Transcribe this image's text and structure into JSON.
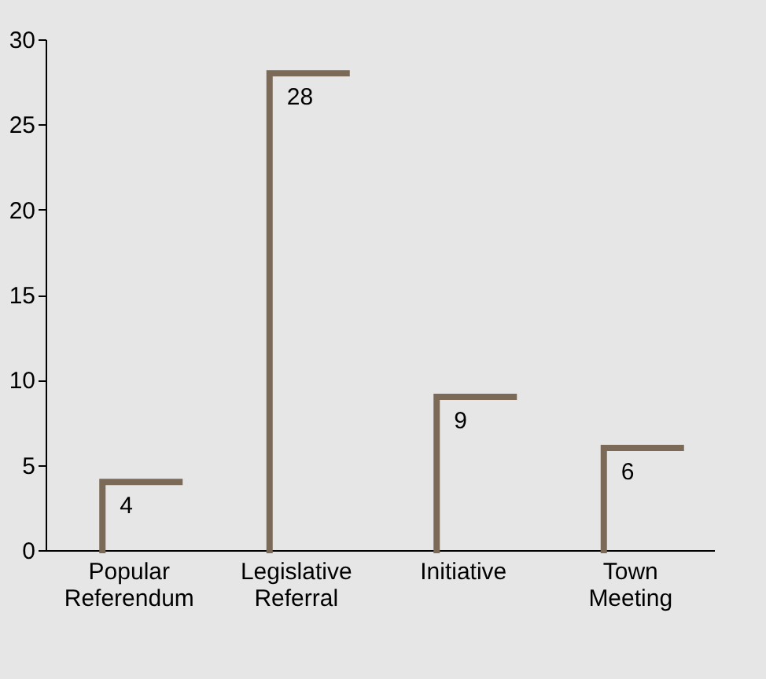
{
  "chart_data": {
    "type": "bar",
    "categories": [
      "Popular Referendum",
      "Legislative Referral",
      "Initiative",
      "Town Meeting"
    ],
    "values": [
      4,
      28,
      9,
      6
    ],
    "color": "#7b6a58",
    "ylim": [
      0,
      30
    ],
    "yticks": [
      0,
      5,
      10,
      15,
      20,
      25,
      30
    ],
    "grid": false,
    "data_labels": true
  }
}
